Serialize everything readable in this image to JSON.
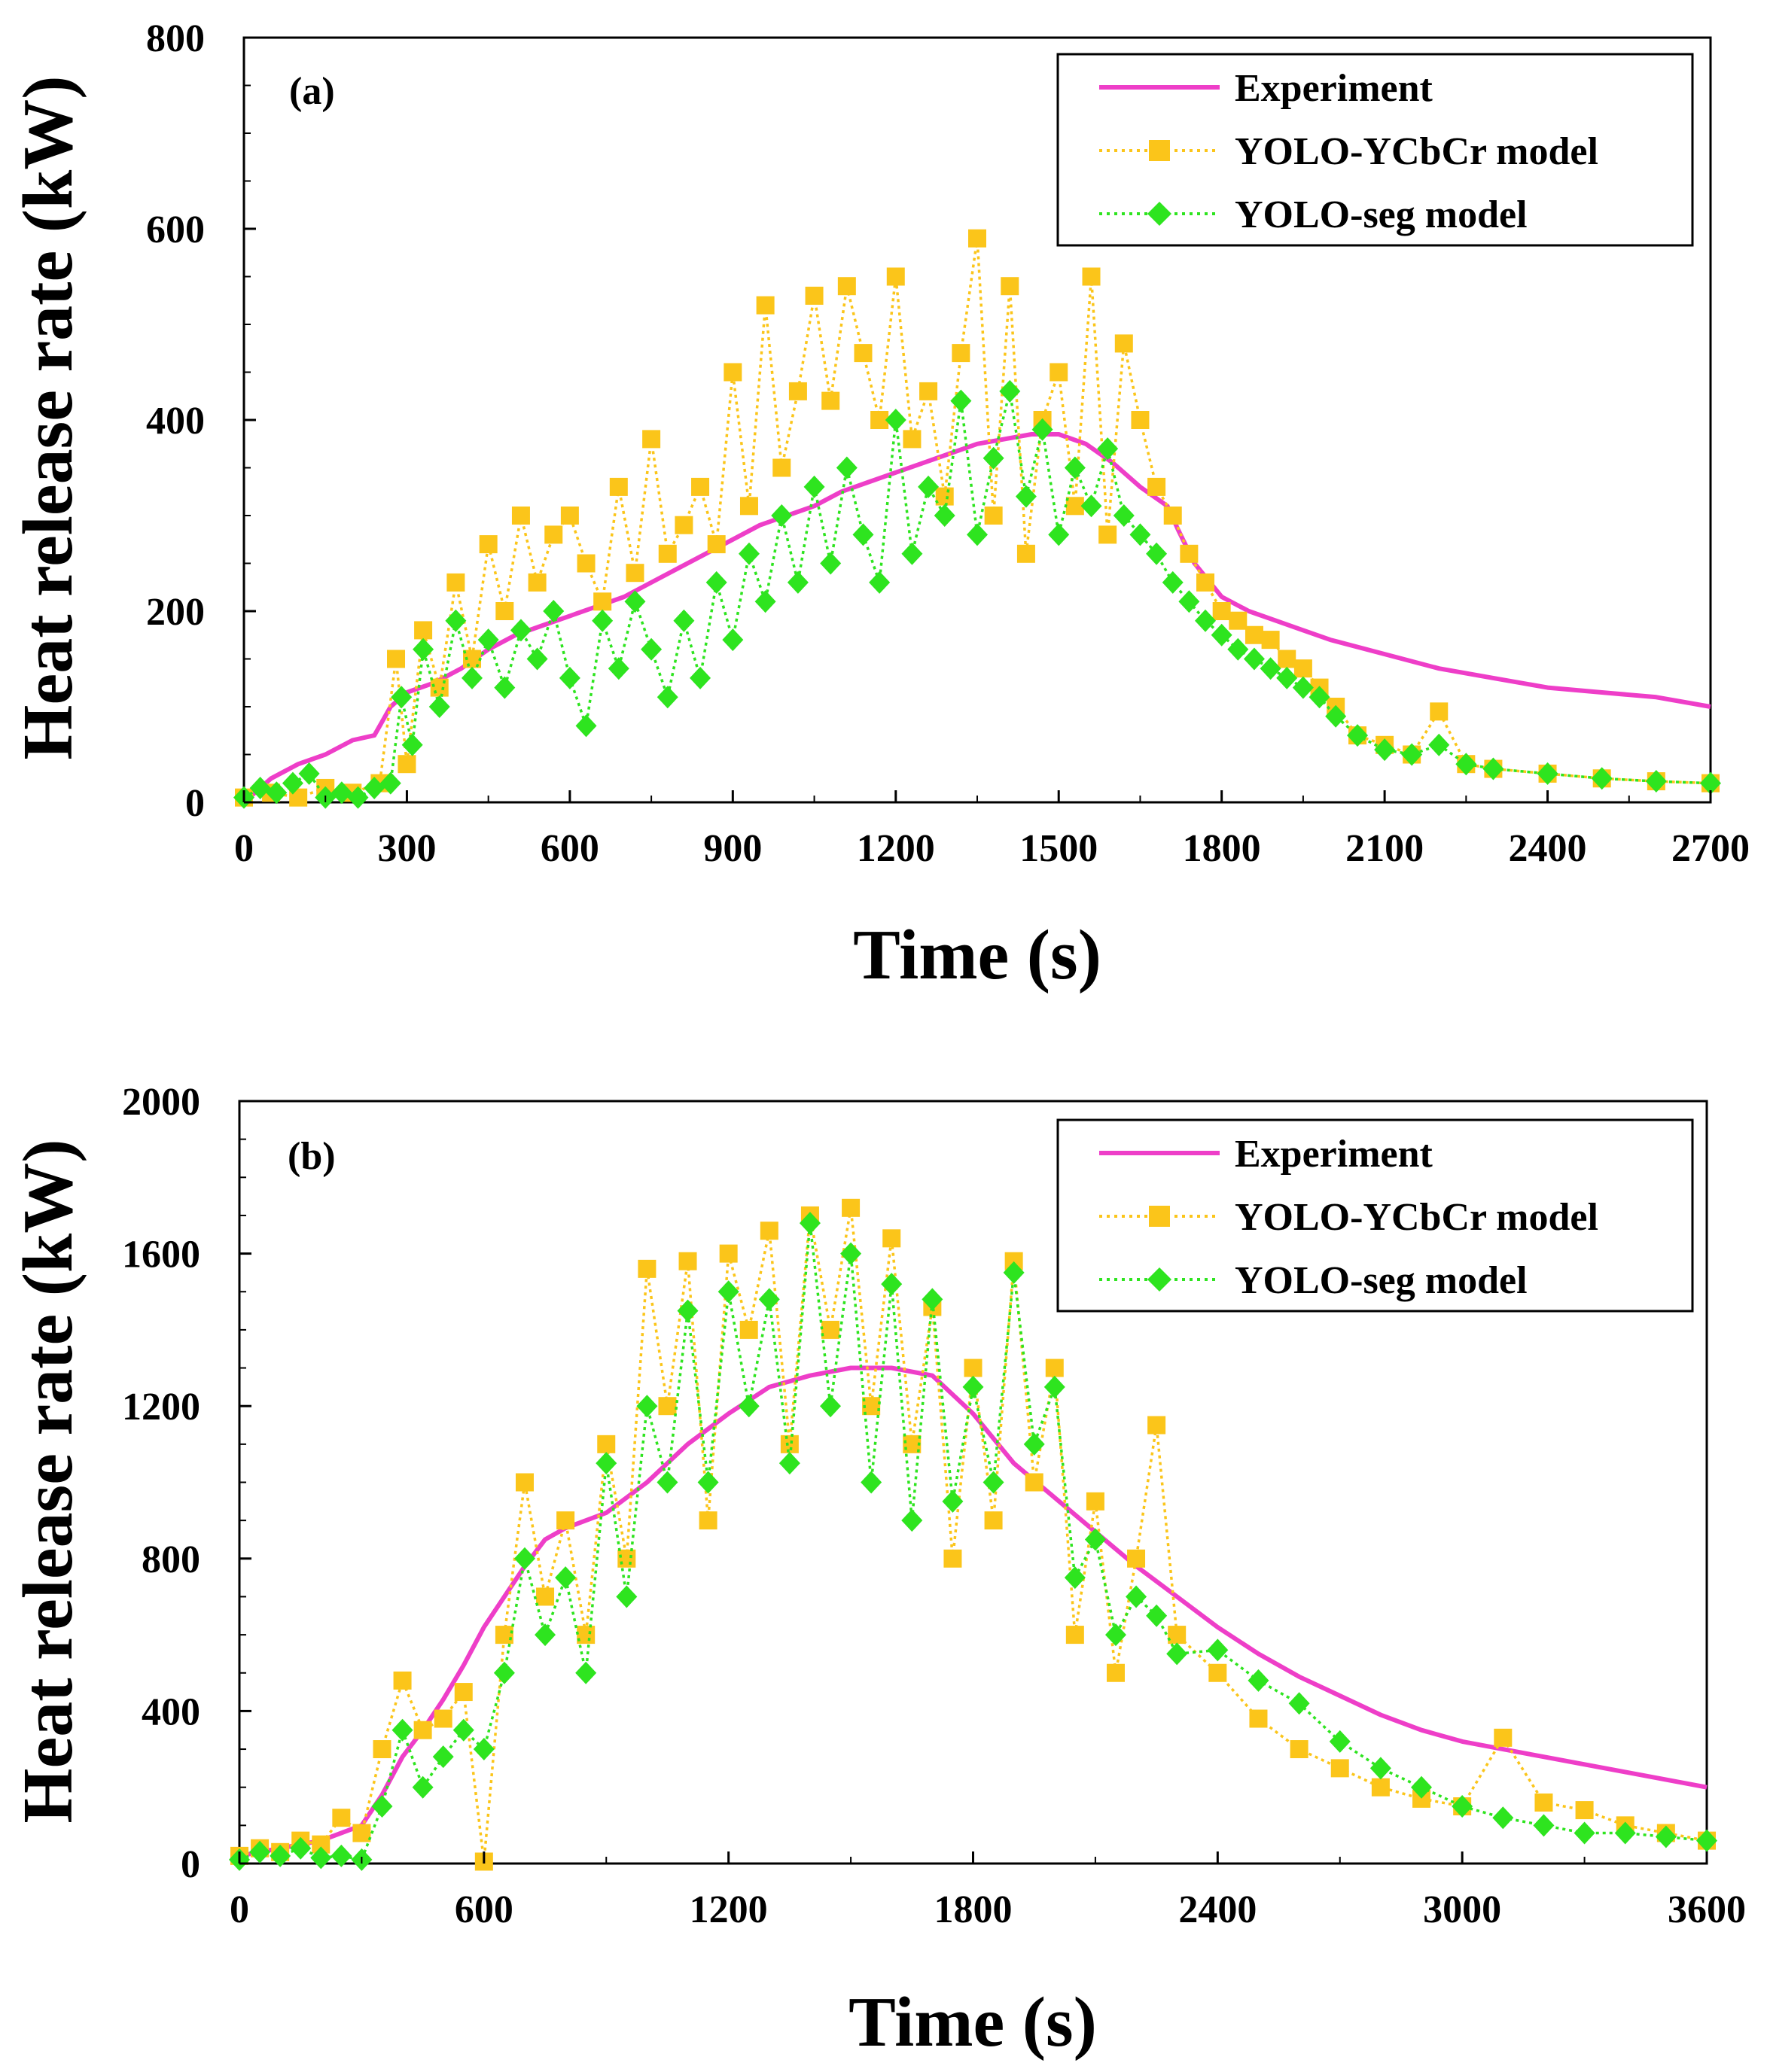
{
  "colors": {
    "experiment": "#ee3ec8",
    "ycbcr": "#fbc51a",
    "seg": "#2ee41f",
    "axis": "#000000"
  },
  "chart_data": [
    {
      "type": "line",
      "panel_label": "(a)",
      "xlabel": "Time (s)",
      "ylabel": "Heat release rate (kW)",
      "xlim": [
        0,
        2700
      ],
      "ylim": [
        0,
        800
      ],
      "xticks": [
        0,
        300,
        600,
        900,
        1200,
        1500,
        1800,
        2100,
        2400,
        2700
      ],
      "yticks": [
        0,
        200,
        400,
        600,
        800
      ],
      "legend_position": "top-right",
      "series": [
        {
          "name": "Experiment",
          "style": "solid",
          "marker": "none",
          "x": [
            0,
            50,
            100,
            150,
            200,
            240,
            270,
            300,
            350,
            400,
            450,
            500,
            550,
            600,
            650,
            700,
            750,
            800,
            850,
            900,
            950,
            1000,
            1050,
            1100,
            1150,
            1200,
            1250,
            1300,
            1350,
            1400,
            1450,
            1500,
            1550,
            1600,
            1650,
            1700,
            1720,
            1750,
            1800,
            1850,
            1900,
            1950,
            2000,
            2100,
            2200,
            2300,
            2400,
            2500,
            2600,
            2700
          ],
          "y": [
            0,
            25,
            40,
            50,
            65,
            70,
            100,
            115,
            125,
            140,
            160,
            175,
            185,
            195,
            205,
            215,
            230,
            245,
            260,
            275,
            290,
            300,
            310,
            325,
            335,
            345,
            355,
            365,
            375,
            380,
            385,
            385,
            375,
            355,
            330,
            310,
            285,
            250,
            215,
            200,
            190,
            180,
            170,
            155,
            140,
            130,
            120,
            115,
            110,
            100
          ]
        },
        {
          "name": "YOLO-YCbCr model",
          "style": "dotted",
          "marker": "square",
          "x": [
            0,
            50,
            100,
            150,
            200,
            250,
            280,
            300,
            330,
            360,
            390,
            420,
            450,
            480,
            510,
            540,
            570,
            600,
            630,
            660,
            690,
            720,
            750,
            780,
            810,
            840,
            870,
            900,
            930,
            960,
            990,
            1020,
            1050,
            1080,
            1110,
            1140,
            1170,
            1200,
            1230,
            1260,
            1290,
            1320,
            1350,
            1380,
            1410,
            1440,
            1470,
            1500,
            1530,
            1560,
            1590,
            1620,
            1650,
            1680,
            1710,
            1740,
            1770,
            1800,
            1830,
            1860,
            1890,
            1920,
            1950,
            1980,
            2010,
            2050,
            2100,
            2150,
            2200,
            2250,
            2300,
            2400,
            2500,
            2600,
            2700
          ],
          "y": [
            5,
            10,
            5,
            15,
            10,
            20,
            150,
            40,
            180,
            120,
            230,
            150,
            270,
            200,
            300,
            230,
            280,
            300,
            250,
            210,
            330,
            240,
            380,
            260,
            290,
            330,
            270,
            450,
            310,
            520,
            350,
            430,
            530,
            420,
            540,
            470,
            400,
            550,
            380,
            430,
            320,
            470,
            590,
            300,
            540,
            260,
            400,
            450,
            310,
            550,
            280,
            480,
            400,
            330,
            300,
            260,
            230,
            200,
            190,
            175,
            170,
            150,
            140,
            120,
            100,
            70,
            60,
            50,
            95,
            40,
            35,
            30,
            25,
            22,
            20
          ]
        },
        {
          "name": "YOLO-seg model",
          "style": "dotted",
          "marker": "diamond",
          "x": [
            0,
            30,
            60,
            90,
            120,
            150,
            180,
            210,
            240,
            270,
            290,
            310,
            330,
            360,
            390,
            420,
            450,
            480,
            510,
            540,
            570,
            600,
            630,
            660,
            690,
            720,
            750,
            780,
            810,
            840,
            870,
            900,
            930,
            960,
            990,
            1020,
            1050,
            1080,
            1110,
            1140,
            1170,
            1200,
            1230,
            1260,
            1290,
            1320,
            1350,
            1380,
            1410,
            1440,
            1470,
            1500,
            1530,
            1560,
            1590,
            1620,
            1650,
            1680,
            1710,
            1740,
            1770,
            1800,
            1830,
            1860,
            1890,
            1920,
            1950,
            1980,
            2010,
            2050,
            2100,
            2150,
            2200,
            2250,
            2300,
            2400,
            2500,
            2600,
            2700
          ],
          "y": [
            5,
            15,
            10,
            20,
            30,
            5,
            10,
            5,
            15,
            20,
            110,
            60,
            160,
            100,
            190,
            130,
            170,
            120,
            180,
            150,
            200,
            130,
            80,
            190,
            140,
            210,
            160,
            110,
            190,
            130,
            230,
            170,
            260,
            210,
            300,
            230,
            330,
            250,
            350,
            280,
            230,
            400,
            260,
            330,
            300,
            420,
            280,
            360,
            430,
            320,
            390,
            280,
            350,
            310,
            370,
            300,
            280,
            260,
            230,
            210,
            190,
            175,
            160,
            150,
            140,
            130,
            120,
            110,
            90,
            70,
            55,
            50,
            60,
            40,
            35,
            30,
            25,
            22,
            20
          ]
        }
      ]
    },
    {
      "type": "line",
      "panel_label": "(b)",
      "xlabel": "Time (s)",
      "ylabel": "Heat release rate (kW)",
      "xlim": [
        0,
        3600
      ],
      "ylim": [
        0,
        2000
      ],
      "xticks": [
        0,
        600,
        1200,
        1800,
        2400,
        3000,
        3600
      ],
      "yticks": [
        0,
        400,
        800,
        1200,
        1600,
        2000
      ],
      "legend_position": "top-right",
      "series": [
        {
          "name": "Experiment",
          "style": "solid",
          "marker": "none",
          "x": [
            0,
            100,
            200,
            300,
            350,
            400,
            450,
            500,
            550,
            600,
            650,
            700,
            750,
            800,
            850,
            900,
            1000,
            1100,
            1200,
            1300,
            1400,
            1500,
            1600,
            1700,
            1800,
            1900,
            2000,
            2100,
            2200,
            2300,
            2400,
            2500,
            2600,
            2700,
            2800,
            2900,
            3000,
            3100,
            3200,
            3300,
            3400,
            3500,
            3600
          ],
          "y": [
            20,
            40,
            60,
            100,
            180,
            280,
            350,
            430,
            520,
            620,
            700,
            780,
            850,
            880,
            900,
            920,
            1000,
            1100,
            1180,
            1250,
            1280,
            1300,
            1300,
            1280,
            1180,
            1050,
            960,
            870,
            780,
            700,
            620,
            550,
            490,
            440,
            390,
            350,
            320,
            300,
            280,
            260,
            240,
            220,
            200
          ]
        },
        {
          "name": "YOLO-YCbCr model",
          "style": "dotted",
          "marker": "square",
          "x": [
            0,
            50,
            100,
            150,
            200,
            250,
            300,
            350,
            400,
            450,
            500,
            550,
            600,
            650,
            700,
            750,
            800,
            850,
            900,
            950,
            1000,
            1050,
            1100,
            1150,
            1200,
            1250,
            1300,
            1350,
            1400,
            1450,
            1500,
            1550,
            1600,
            1650,
            1700,
            1750,
            1800,
            1850,
            1900,
            1950,
            2000,
            2050,
            2100,
            2150,
            2200,
            2250,
            2300,
            2400,
            2500,
            2600,
            2700,
            2800,
            2900,
            3000,
            3100,
            3200,
            3300,
            3400,
            3500,
            3600
          ],
          "y": [
            20,
            40,
            30,
            60,
            50,
            120,
            80,
            300,
            480,
            350,
            380,
            450,
            5,
            600,
            1000,
            700,
            900,
            600,
            1100,
            800,
            1560,
            1200,
            1580,
            900,
            1600,
            1400,
            1660,
            1100,
            1700,
            1400,
            1720,
            1200,
            1640,
            1100,
            1460,
            800,
            1300,
            900,
            1580,
            1000,
            1300,
            600,
            950,
            500,
            800,
            1150,
            600,
            500,
            380,
            300,
            250,
            200,
            170,
            150,
            330,
            160,
            140,
            100,
            80,
            60
          ]
        },
        {
          "name": "YOLO-seg model",
          "style": "dotted",
          "marker": "diamond",
          "x": [
            0,
            50,
            100,
            150,
            200,
            250,
            300,
            350,
            400,
            450,
            500,
            550,
            600,
            650,
            700,
            750,
            800,
            850,
            900,
            950,
            1000,
            1050,
            1100,
            1150,
            1200,
            1250,
            1300,
            1350,
            1400,
            1450,
            1500,
            1550,
            1600,
            1650,
            1700,
            1750,
            1800,
            1850,
            1900,
            1950,
            2000,
            2050,
            2100,
            2150,
            2200,
            2250,
            2300,
            2400,
            2500,
            2600,
            2700,
            2800,
            2900,
            3000,
            3100,
            3200,
            3300,
            3400,
            3500,
            3600
          ],
          "y": [
            10,
            30,
            20,
            40,
            15,
            20,
            10,
            150,
            350,
            200,
            280,
            350,
            300,
            500,
            800,
            600,
            750,
            500,
            1050,
            700,
            1200,
            1000,
            1450,
            1000,
            1500,
            1200,
            1480,
            1050,
            1680,
            1200,
            1600,
            1000,
            1520,
            900,
            1480,
            950,
            1250,
            1000,
            1550,
            1100,
            1250,
            750,
            850,
            600,
            700,
            650,
            550,
            560,
            480,
            420,
            320,
            250,
            200,
            150,
            120,
            100,
            80,
            80,
            70,
            60
          ]
        }
      ]
    }
  ]
}
